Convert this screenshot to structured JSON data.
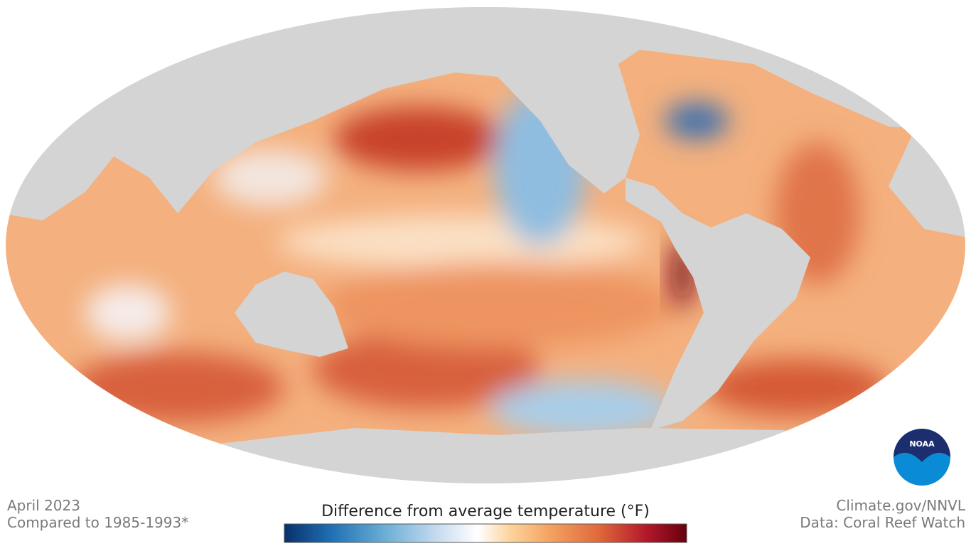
{
  "map": {
    "date": "April 2023",
    "baseline": "Compared to 1985-1993*",
    "legend_title": "Difference from average temperature (°F)",
    "credit": "Climate.gov/NNVL",
    "source": "Data: Coral Reef Watch",
    "logo": "NOAA"
  }
}
